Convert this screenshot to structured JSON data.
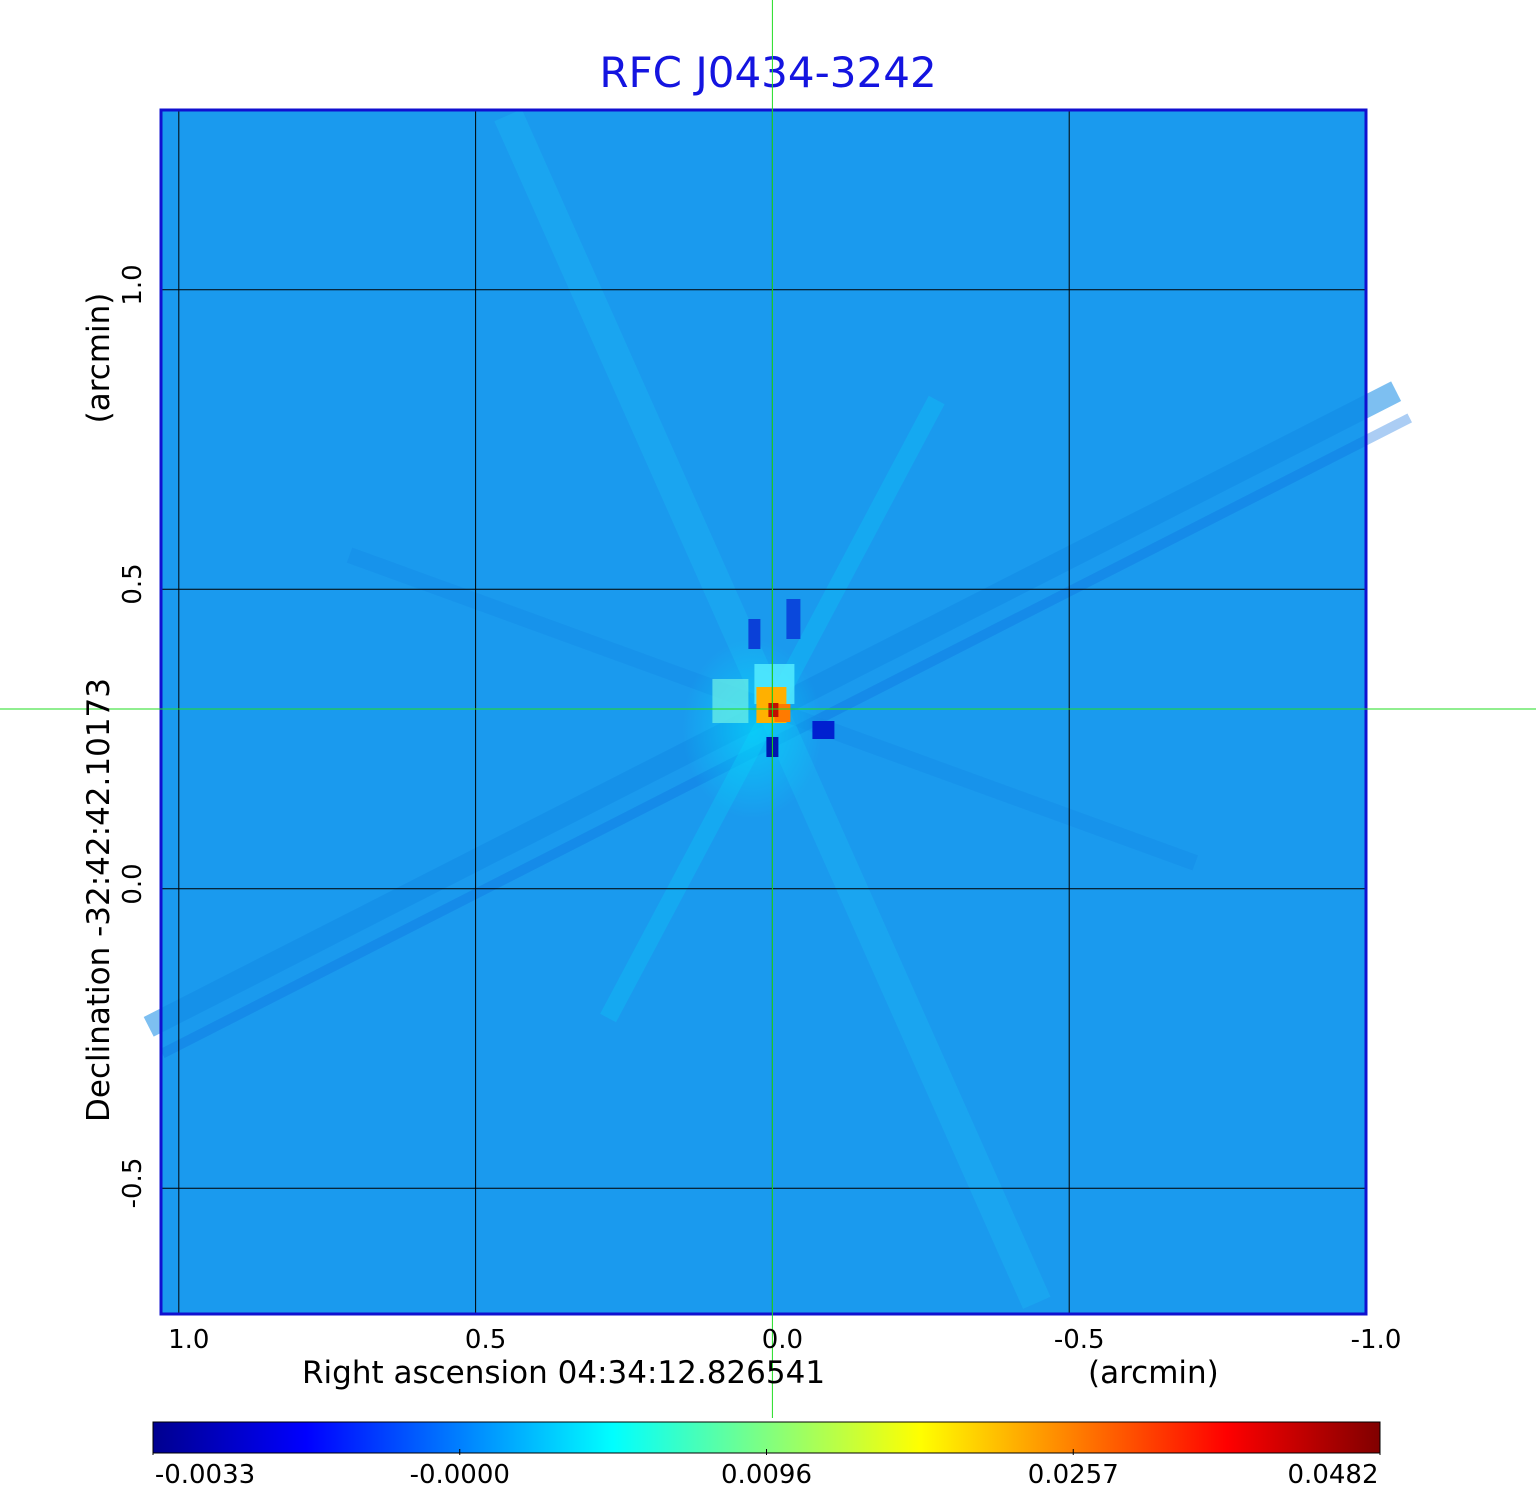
{
  "chart_data": {
    "type": "heatmap",
    "title": "RFC J0434-3242",
    "xlabel": "Right ascension  04:34:12.826541",
    "xunit": "(arcmin)",
    "ylabel": "Declination  -32:42:42.10173",
    "yunit": "(arcmin)",
    "xlim": [
      1.03,
      -1.0
    ],
    "ylim": [
      -0.71,
      1.3
    ],
    "x_ticks": [
      "1.0",
      "0.5",
      "0.0",
      "-0.5",
      "-1.0"
    ],
    "x_tick_values": [
      1.0,
      0.5,
      0.0,
      -0.5,
      -1.0
    ],
    "y_ticks": [
      "-0.5",
      "0.0",
      "0.5",
      "1.0"
    ],
    "y_tick_values": [
      -0.5,
      0.0,
      0.5,
      1.0
    ],
    "grid": true,
    "crosshair": {
      "x": 0.0,
      "y": 0.3,
      "color": "#22dd22"
    },
    "colormap": "jet",
    "colorbar_ticks": [
      "-0.0033",
      "-0.0000",
      "0.0096",
      "0.0257",
      "0.0482"
    ],
    "source_peak": {
      "x": 0.0,
      "y": 0.3,
      "value": 0.0482
    },
    "background_level": -0.0001
  }
}
